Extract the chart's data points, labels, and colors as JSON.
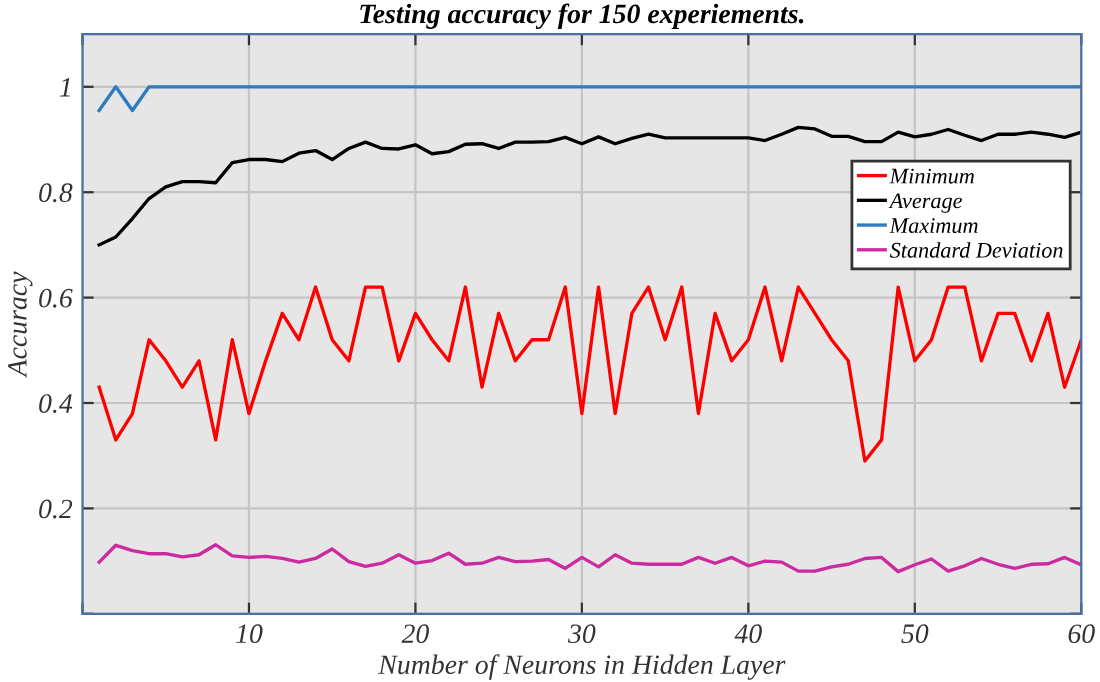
{
  "chart_data": {
    "type": "line",
    "title": "Testing accuracy for 150 experiements.",
    "xlabel": "Number of Neurons in Hidden Layer",
    "ylabel": "Accuracy",
    "x": [
      1,
      2,
      3,
      4,
      5,
      6,
      7,
      8,
      9,
      10,
      11,
      12,
      13,
      14,
      15,
      16,
      17,
      18,
      19,
      20,
      21,
      22,
      23,
      24,
      25,
      26,
      27,
      28,
      29,
      30,
      31,
      32,
      33,
      34,
      35,
      36,
      37,
      38,
      39,
      40,
      41,
      42,
      43,
      44,
      45,
      46,
      47,
      48,
      49,
      50,
      51,
      52,
      53,
      54,
      55,
      56,
      57,
      58,
      59,
      60
    ],
    "series": [
      {
        "name": "Minimum",
        "color": "#ff0000",
        "values": [
          0.43,
          0.33,
          0.38,
          0.52,
          0.48,
          0.43,
          0.48,
          0.33,
          0.52,
          0.38,
          0.48,
          0.57,
          0.52,
          0.62,
          0.52,
          0.48,
          0.62,
          0.62,
          0.48,
          0.57,
          0.52,
          0.48,
          0.62,
          0.43,
          0.57,
          0.48,
          0.52,
          0.52,
          0.62,
          0.38,
          0.62,
          0.38,
          0.57,
          0.62,
          0.52,
          0.62,
          0.38,
          0.57,
          0.48,
          0.52,
          0.62,
          0.48,
          0.62,
          0.57,
          0.52,
          0.48,
          0.29,
          0.33,
          0.62,
          0.48,
          0.52,
          0.62,
          0.62,
          0.48,
          0.57,
          0.57,
          0.48,
          0.57,
          0.43,
          0.52
        ]
      },
      {
        "name": "Average",
        "color": "#000000",
        "values": [
          0.7,
          0.715,
          0.75,
          0.788,
          0.81,
          0.82,
          0.82,
          0.818,
          0.856,
          0.862,
          0.862,
          0.858,
          0.874,
          0.879,
          0.862,
          0.883,
          0.895,
          0.883,
          0.882,
          0.89,
          0.873,
          0.877,
          0.891,
          0.892,
          0.883,
          0.895,
          0.895,
          0.896,
          0.904,
          0.892,
          0.905,
          0.892,
          0.902,
          0.91,
          0.903,
          0.903,
          0.903,
          0.903,
          0.903,
          0.903,
          0.898,
          0.91,
          0.923,
          0.92,
          0.906,
          0.906,
          0.896,
          0.896,
          0.914,
          0.905,
          0.91,
          0.919,
          0.908,
          0.898,
          0.91,
          0.91,
          0.914,
          0.91,
          0.904,
          0.914
        ]
      },
      {
        "name": "Maximum",
        "color": "#2f7bbf",
        "values": [
          0.955,
          1,
          0.955,
          1,
          1,
          1,
          1,
          1,
          1,
          1,
          1,
          1,
          1,
          1,
          1,
          1,
          1,
          1,
          1,
          1,
          1,
          1,
          1,
          1,
          1,
          1,
          1,
          1,
          1,
          1,
          1,
          1,
          1,
          1,
          1,
          1,
          1,
          1,
          1,
          1,
          1,
          1,
          1,
          1,
          1,
          1,
          1,
          1,
          1,
          1,
          1,
          1,
          1,
          1,
          1,
          1,
          1,
          1,
          1,
          1
        ]
      },
      {
        "name": "Standard Deviation",
        "color": "#cc2aa0",
        "values": [
          0.098,
          0.13,
          0.12,
          0.114,
          0.114,
          0.108,
          0.112,
          0.131,
          0.11,
          0.107,
          0.109,
          0.105,
          0.098,
          0.105,
          0.123,
          0.099,
          0.09,
          0.096,
          0.112,
          0.096,
          0.101,
          0.115,
          0.094,
          0.096,
          0.107,
          0.099,
          0.1,
          0.103,
          0.086,
          0.107,
          0.089,
          0.112,
          0.096,
          0.094,
          0.094,
          0.094,
          0.107,
          0.096,
          0.107,
          0.091,
          0.1,
          0.098,
          0.081,
          0.081,
          0.089,
          0.094,
          0.105,
          0.107,
          0.08,
          0.093,
          0.104,
          0.081,
          0.091,
          0.105,
          0.094,
          0.086,
          0.094,
          0.095,
          0.107,
          0.093
        ]
      }
    ],
    "xlim": [
      0,
      60
    ],
    "ylim": [
      0,
      1.1
    ],
    "xticks": [
      {
        "value": 0,
        "label": null
      },
      10,
      20,
      30,
      40,
      50,
      60
    ],
    "yticks": [
      {
        "value": 0,
        "label": null
      },
      0.2,
      0.4,
      0.6,
      0.8,
      1
    ],
    "grid": true,
    "legend": "right",
    "marker": "none",
    "line_style": "solid"
  }
}
